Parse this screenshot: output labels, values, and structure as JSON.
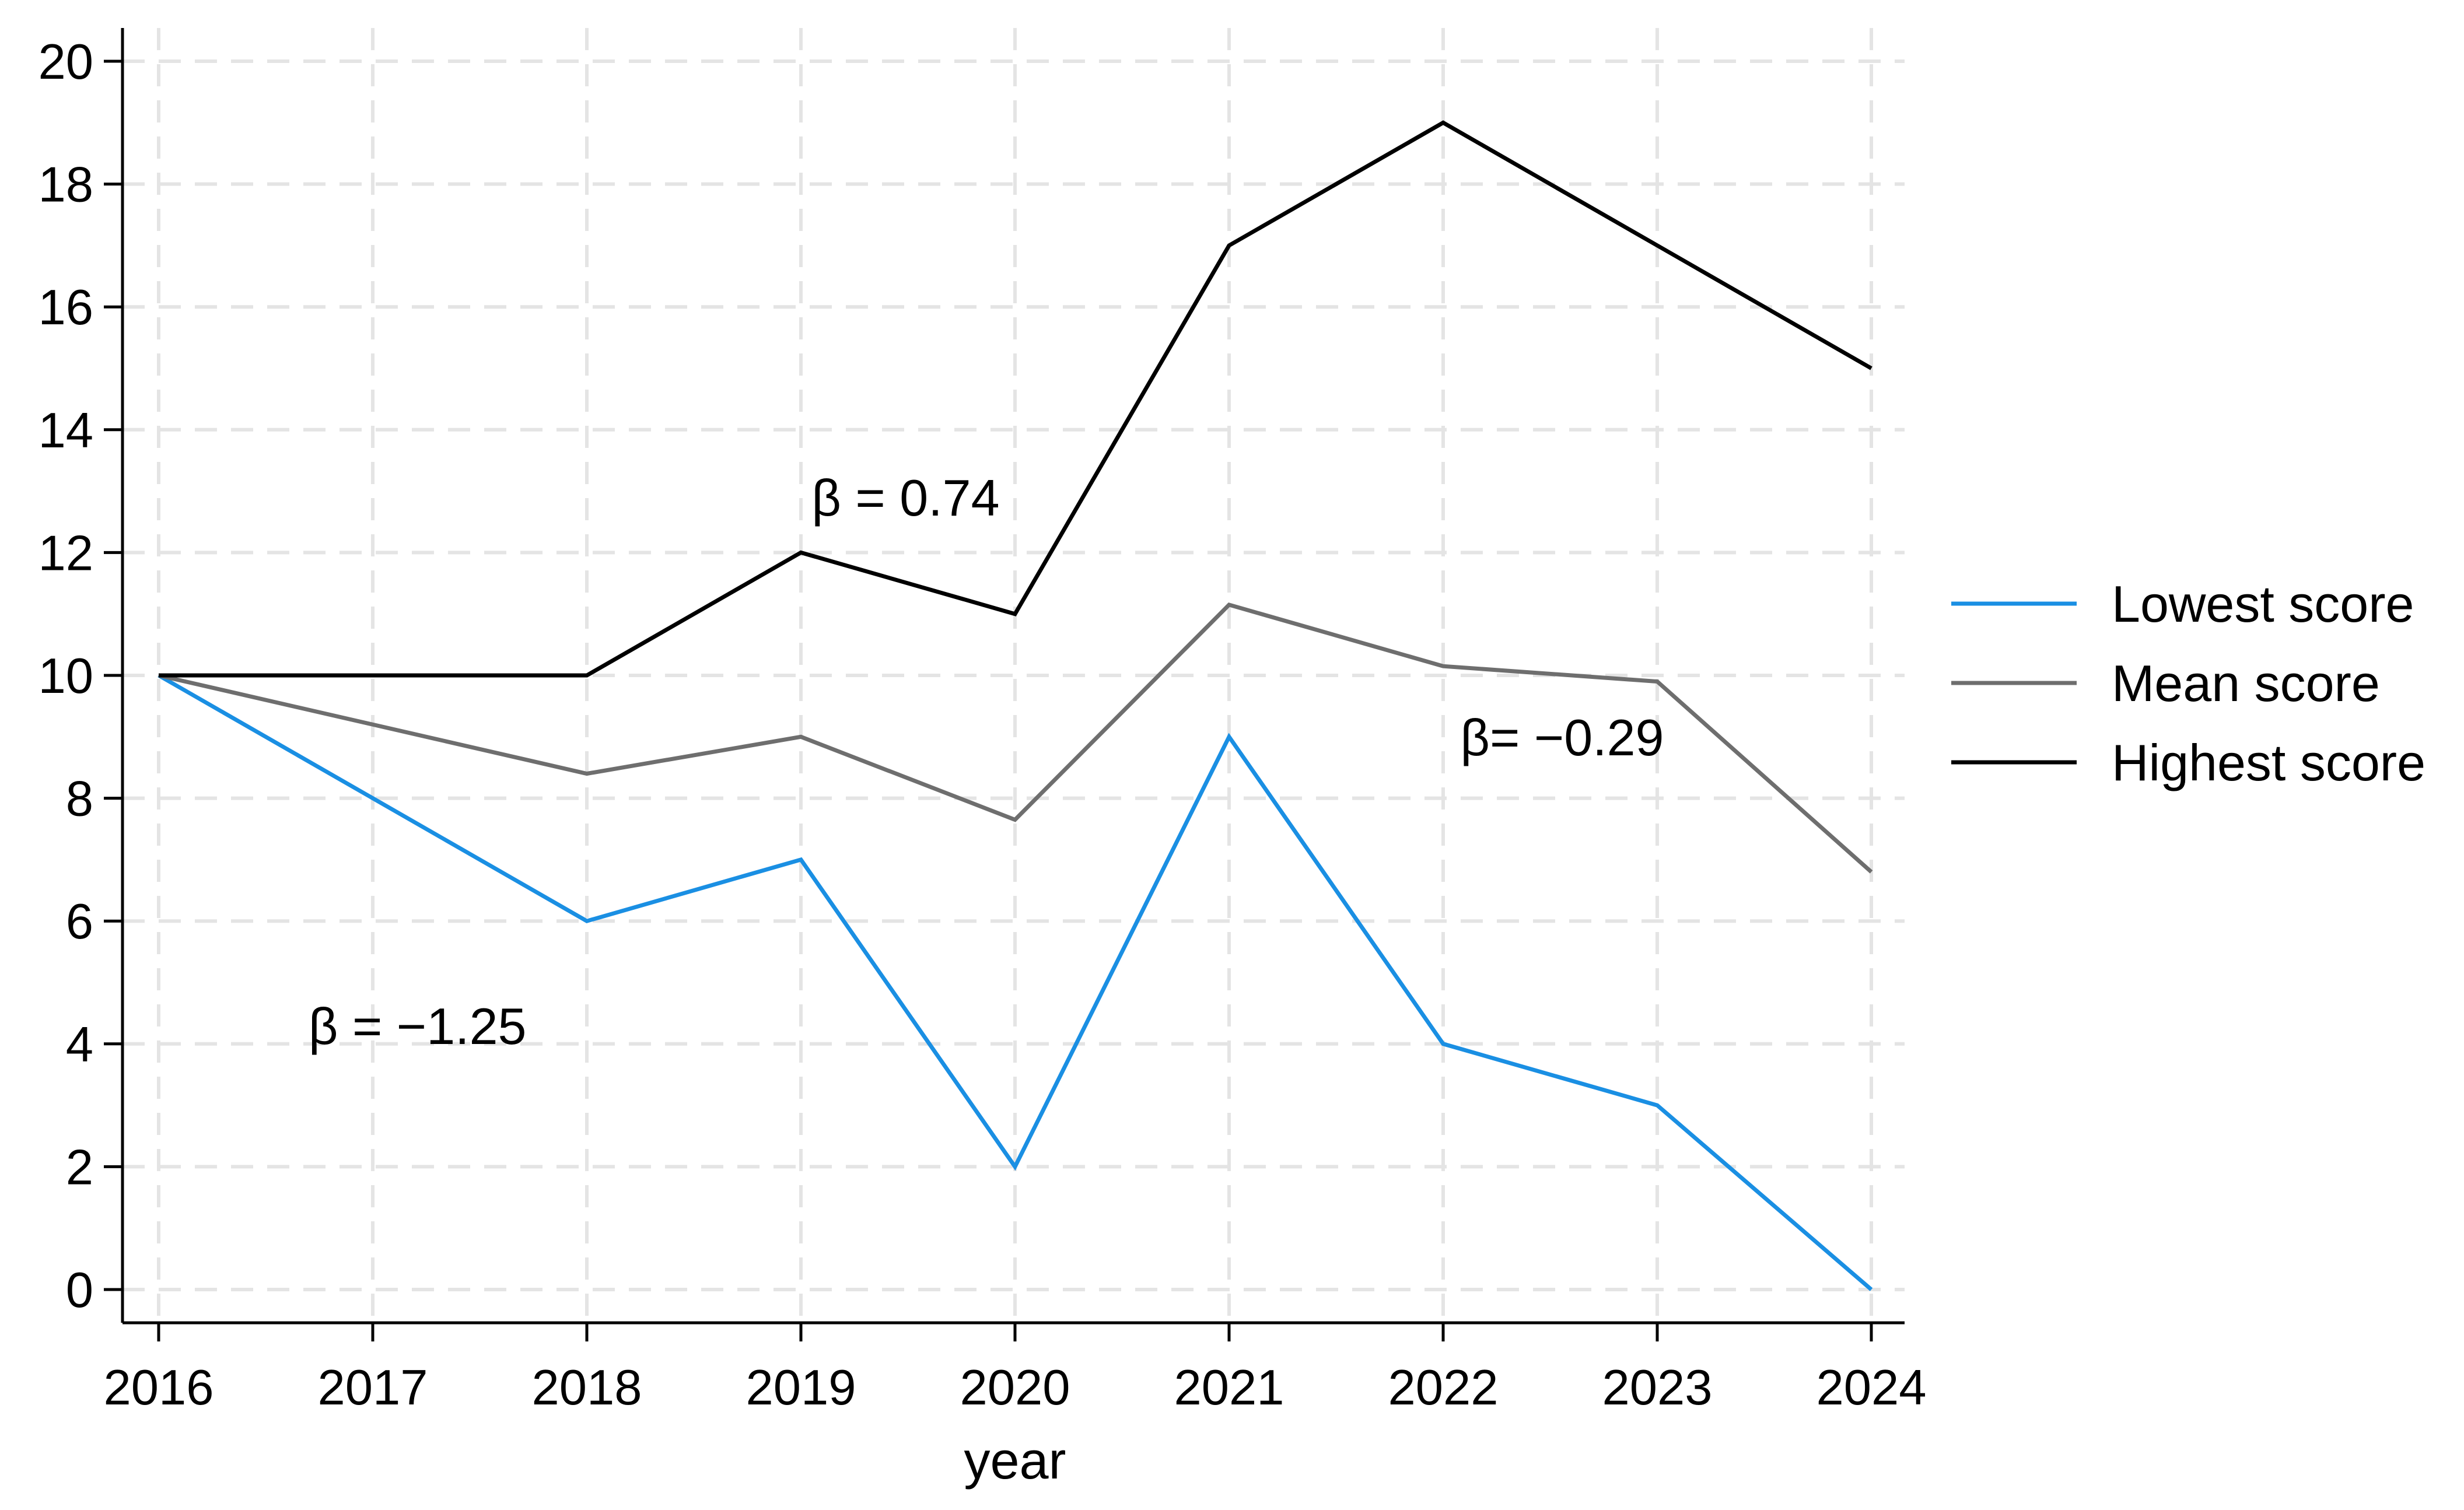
{
  "chart_data": {
    "type": "line",
    "title": "",
    "xlabel": "year",
    "ylabel": "",
    "x": [
      2016,
      2017,
      2018,
      2019,
      2020,
      2021,
      2022,
      2023,
      2024
    ],
    "xlim": [
      2016,
      2024
    ],
    "ylim": [
      0,
      20
    ],
    "yticks": [
      0,
      2,
      4,
      6,
      8,
      10,
      12,
      14,
      16,
      18,
      20
    ],
    "xticks": [
      2016,
      2017,
      2018,
      2019,
      2020,
      2021,
      2022,
      2023,
      2024
    ],
    "grid": true,
    "legend_position": "right",
    "series": [
      {
        "name": "Lowest score",
        "color": "#1a8fe3",
        "x": [
          2016,
          2018,
          2019,
          2020,
          2021,
          2022,
          2023,
          2024
        ],
        "values": [
          10,
          6,
          7,
          2,
          9,
          4,
          3,
          0
        ]
      },
      {
        "name": "Mean score",
        "color": "#6e6e6e",
        "x": [
          2016,
          2018,
          2019,
          2020,
          2021,
          2022,
          2023,
          2024
        ],
        "values": [
          10,
          8.4,
          9,
          7.65,
          11.15,
          10.15,
          9.9,
          6.8
        ]
      },
      {
        "name": "Highest score",
        "color": "#000000",
        "x": [
          2016,
          2018,
          2019,
          2020,
          2021,
          2022,
          2023,
          2024
        ],
        "values": [
          10,
          10,
          12,
          11,
          17,
          19,
          17,
          15
        ]
      }
    ],
    "annotations": [
      {
        "text": "β = 0.74",
        "x": 2019.05,
        "y": 12.6
      },
      {
        "text": "β= −0.29",
        "x": 2022.08,
        "y": 8.7
      },
      {
        "text": "β = −1.25",
        "x": 2016.7,
        "y": 4.0
      }
    ]
  }
}
